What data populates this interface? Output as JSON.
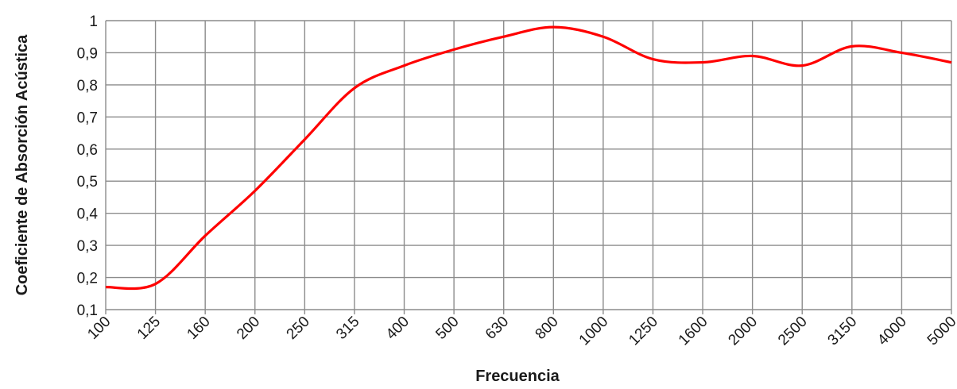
{
  "chart_data": {
    "type": "line",
    "title": "",
    "xlabel": "Frecuencia",
    "ylabel": "Coeficiente de Absorción Acústica",
    "x_scale": "log",
    "categories": [
      "100",
      "125",
      "160",
      "200",
      "250",
      "315",
      "400",
      "500",
      "630",
      "800",
      "1000",
      "1250",
      "1600",
      "2000",
      "2500",
      "3150",
      "4000",
      "5000"
    ],
    "ylim": [
      0.1,
      1
    ],
    "yticks": [
      "0,1",
      "0,2",
      "0,3",
      "0,4",
      "0,5",
      "0,6",
      "0,7",
      "0,8",
      "0,9",
      "1"
    ],
    "grid": true,
    "legend": "none",
    "series": [
      {
        "color": "#ff0000",
        "values": [
          0.17,
          0.18,
          0.33,
          0.47,
          0.63,
          0.79,
          0.86,
          0.91,
          0.95,
          0.98,
          0.95,
          0.88,
          0.87,
          0.89,
          0.86,
          0.92,
          0.9,
          0.87
        ]
      }
    ]
  }
}
